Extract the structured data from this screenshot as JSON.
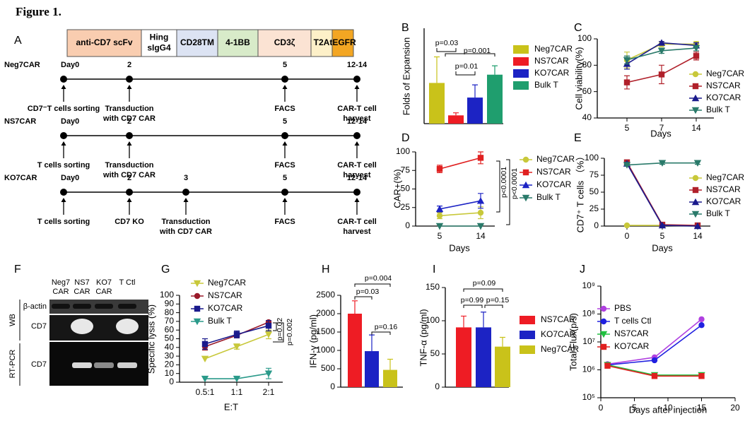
{
  "figure_title": "Figure 1.",
  "panel_a": {
    "label": "A",
    "construct": [
      {
        "lines": [
          "anti-CD7 scFv"
        ],
        "color": "#f9cdb0"
      },
      {
        "lines": [
          "Hing",
          "sIgG4"
        ],
        "color": "#ffffff"
      },
      {
        "lines": [
          "CD28TM"
        ],
        "color": "#dce3f3"
      },
      {
        "lines": [
          "4-1BB"
        ],
        "color": "#d8ebc9"
      },
      {
        "lines": [
          "CD3ζ"
        ],
        "color": "#fbe3d3"
      },
      {
        "lines": [
          "T2A"
        ],
        "color": "#fdf0c8"
      },
      {
        "lines": [
          "tEGFR"
        ],
        "color": "#f3a623"
      }
    ],
    "timelines": [
      {
        "name": "Neg7CAR",
        "days": [
          "Day0",
          "2",
          "5",
          "12-14"
        ],
        "events": [
          [
            "CD7⁻T cells sorting"
          ],
          [
            "Transduction",
            "with CD7 CAR"
          ],
          [
            "FACS"
          ],
          [
            "CAR-T cell",
            "harvest"
          ]
        ]
      },
      {
        "name": "NS7CAR",
        "days": [
          "Day0",
          "2",
          "5",
          "12-14"
        ],
        "events": [
          [
            "T cells sorting"
          ],
          [
            "Transduction",
            "with CD7 CAR"
          ],
          [
            "FACS"
          ],
          [
            "CAR-T cell",
            "harvest"
          ]
        ]
      },
      {
        "name": "KO7CAR",
        "days": [
          "Day0",
          "2",
          "3",
          "5",
          "12-14"
        ],
        "events": [
          [
            "T cells sorting"
          ],
          [
            "CD7 KO"
          ],
          [
            "Transduction",
            "with CD7 CAR"
          ],
          [
            "FACS"
          ],
          [
            "CAR-T cell",
            "harvest"
          ]
        ]
      }
    ]
  },
  "panel_f": {
    "label": "F",
    "lanes": [
      [
        "Neg7",
        "CAR"
      ],
      [
        "NS7",
        "CAR"
      ],
      [
        "KO7",
        "CAR"
      ],
      [
        "T Ctl"
      ]
    ],
    "rows": [
      "β-actin",
      "CD7",
      "CD7"
    ],
    "groups": [
      "WB",
      "RT-PCR"
    ]
  },
  "chart_data": [
    {
      "panel": "B",
      "type": "bar",
      "ylabel": "Folds of Expansion",
      "ylim": [
        0,
        150
      ],
      "legend": "right",
      "series": [
        {
          "name": "Neg7CAR",
          "color": "#c9c21a",
          "values": [
            64
          ],
          "errors": [
            41
          ]
        },
        {
          "name": "NS7CAR",
          "color": "#ee1c24",
          "values": [
            13
          ],
          "errors": [
            4
          ]
        },
        {
          "name": "KO7CAR",
          "color": "#1c23c4",
          "values": [
            41
          ],
          "errors": [
            20
          ]
        },
        {
          "name": "Bulk T",
          "color": "#1f9e6e",
          "values": [
            77
          ],
          "errors": [
            14
          ]
        }
      ],
      "annotations": [
        "p=0.03",
        "p=0.01",
        "p=0.001"
      ]
    },
    {
      "panel": "C",
      "type": "line",
      "ylabel": "Cell viability(%)",
      "xlabel": "Days",
      "categories": [
        "5",
        "7",
        "14"
      ],
      "ylim": [
        40,
        100
      ],
      "yticks": [
        40,
        60,
        80,
        100
      ],
      "legend": "right",
      "series": [
        {
          "name": "Neg7CAR",
          "color": "#c8c83a",
          "marker": "circle",
          "values": [
            84,
            96,
            96
          ],
          "errors": [
            6,
            2,
            2
          ]
        },
        {
          "name": "NS7CAR",
          "color": "#b0202a",
          "marker": "square",
          "values": [
            67,
            73,
            87
          ],
          "errors": [
            5,
            7,
            3
          ]
        },
        {
          "name": "KO7CAR",
          "color": "#1a1a8c",
          "marker": "tri-up",
          "values": [
            81,
            97,
            95
          ],
          "errors": [
            4,
            1,
            2
          ]
        },
        {
          "name": "Bulk T",
          "color": "#2a7a6a",
          "marker": "tri-down",
          "values": [
            84,
            91,
            93
          ],
          "errors": [
            3,
            2,
            2
          ]
        }
      ]
    },
    {
      "panel": "D",
      "type": "line",
      "ylabel": "CAR+(%)",
      "xlabel": "Days",
      "categories": [
        "5",
        "14"
      ],
      "ylim": [
        0,
        100
      ],
      "yticks": [
        0,
        25,
        50,
        75,
        100
      ],
      "legend": "right",
      "series": [
        {
          "name": "Neg7CAR",
          "color": "#c8c83a",
          "marker": "circle",
          "values": [
            14,
            18
          ],
          "errors": [
            4,
            8
          ]
        },
        {
          "name": "NS7CAR",
          "color": "#e02020",
          "marker": "square",
          "values": [
            77,
            92
          ],
          "errors": [
            5,
            8
          ]
        },
        {
          "name": "KO7CAR",
          "color": "#1c23c4",
          "marker": "tri-up",
          "values": [
            23,
            34
          ],
          "errors": [
            4,
            10
          ]
        },
        {
          "name": "Bulk T",
          "color": "#2a7a6a",
          "marker": "tri-down",
          "values": [
            0,
            0
          ],
          "errors": [
            0,
            0
          ]
        }
      ],
      "annotations": [
        "p<0.0001",
        "p<0.0001"
      ]
    },
    {
      "panel": "E",
      "type": "line",
      "ylabel": "CD7⁺ T cells （%）",
      "xlabel": "Days",
      "categories": [
        "0",
        "5",
        "14"
      ],
      "ylim": [
        0,
        100
      ],
      "yticks": [
        0,
        25,
        50,
        75,
        100
      ],
      "legend": "right",
      "series": [
        {
          "name": "Neg7CAR",
          "color": "#c8c83a",
          "marker": "circle",
          "values": [
            1,
            1,
            0
          ],
          "errors": [
            0,
            0,
            0
          ]
        },
        {
          "name": "NS7CAR",
          "color": "#b0202a",
          "marker": "square",
          "values": [
            94,
            2,
            1
          ],
          "errors": [
            2,
            1,
            0
          ]
        },
        {
          "name": "KO7CAR",
          "color": "#1a1a8c",
          "marker": "tri-up",
          "values": [
            92,
            1,
            0
          ],
          "errors": [
            2,
            1,
            0
          ]
        },
        {
          "name": "Bulk T",
          "color": "#2a7a6a",
          "marker": "tri-down",
          "values": [
            90,
            93,
            93
          ],
          "errors": [
            1,
            2,
            2
          ]
        }
      ]
    },
    {
      "panel": "G",
      "type": "line",
      "ylabel": "Specific lysis (%)",
      "xlabel": "E:T",
      "categories": [
        "0.5:1",
        "1:1",
        "2:1"
      ],
      "ylim": [
        0,
        100
      ],
      "yticks": [
        0,
        10,
        20,
        30,
        40,
        50,
        60,
        70,
        80,
        90,
        100
      ],
      "legend": "top-left",
      "series": [
        {
          "name": "Neg7CAR",
          "color": "#c8c83a",
          "marker": "tri-down",
          "values": [
            27,
            41,
            55
          ],
          "errors": [
            0,
            3,
            5
          ]
        },
        {
          "name": "NS7CAR",
          "color": "#9a1a2a",
          "marker": "circle",
          "values": [
            41,
            54,
            69
          ],
          "errors": [
            4,
            3,
            2
          ]
        },
        {
          "name": "KO7CAR",
          "color": "#1a1a8c",
          "marker": "square",
          "values": [
            44,
            55,
            65
          ],
          "errors": [
            6,
            4,
            6
          ]
        },
        {
          "name": "Bulk T",
          "color": "#2a9a8a",
          "marker": "tri-down",
          "values": [
            4,
            4,
            10
          ],
          "errors": [
            0,
            0,
            6
          ]
        }
      ],
      "annotations": [
        "p=0.02",
        "p=0.002"
      ]
    },
    {
      "panel": "H",
      "type": "bar",
      "ylabel": "IFN-γ (pg/ml)",
      "categories": [
        null,
        null,
        null
      ],
      "values": [
        2000,
        980,
        470
      ],
      "errors": [
        350,
        440,
        290
      ],
      "colors": [
        "#ee1c24",
        "#1c23c4",
        "#c9c21a"
      ],
      "ylim": [
        0,
        2500
      ],
      "yticks": [
        0,
        500,
        1000,
        1500,
        2000,
        2500
      ],
      "annotations": [
        "p=0.004",
        "p=0.03",
        "p=0.16"
      ]
    },
    {
      "panel": "I",
      "type": "bar",
      "ylabel": "TNF-α (pg/ml)",
      "ylim": [
        0,
        150
      ],
      "yticks": [
        0,
        50,
        100,
        150
      ],
      "legend": "right",
      "series": [
        {
          "name": "NS7CAR",
          "color": "#ee1c24",
          "values": [
            90
          ],
          "errors": [
            17
          ]
        },
        {
          "name": "KO7CAR",
          "color": "#1c23c4",
          "values": [
            90
          ],
          "errors": [
            23
          ]
        },
        {
          "name": "Neg7CAR",
          "color": "#c9c21a",
          "values": [
            61
          ],
          "errors": [
            14
          ]
        }
      ],
      "annotations": [
        "p=0.09",
        "p=0.99",
        "p=0.15"
      ]
    },
    {
      "panel": "J",
      "type": "line",
      "ylabel": "Total Flux(p/s)",
      "xlabel": "Days after injection",
      "x": [
        1,
        8,
        15
      ],
      "xlim": [
        0,
        20
      ],
      "xticks": [
        0,
        5,
        10,
        15,
        20
      ],
      "ylog": true,
      "ylim": [
        100000,
        1000000000
      ],
      "yticks": [
        {
          "value": 100000,
          "label": "10⁵"
        },
        {
          "value": 1000000,
          "label": "10⁶"
        },
        {
          "value": 10000000,
          "label": "10⁷"
        },
        {
          "value": 100000000,
          "label": "10⁸"
        },
        {
          "value": 1000000000,
          "label": "10⁹"
        }
      ],
      "legend": "top-left",
      "series": [
        {
          "name": "PBS",
          "color": "#b040e0",
          "marker": "circle",
          "values": [
            1600000,
            2800000,
            65000000
          ]
        },
        {
          "name": "T cells Ctl",
          "color": "#2020e0",
          "marker": "circle",
          "values": [
            1500000,
            2200000,
            40000000
          ]
        },
        {
          "name": "NS7CAR",
          "color": "#20c040",
          "marker": "tri-down",
          "values": [
            1500000,
            650000,
            650000
          ]
        },
        {
          "name": "KO7CAR",
          "color": "#e02020",
          "marker": "square",
          "values": [
            1400000,
            600000,
            600000
          ]
        }
      ]
    }
  ]
}
